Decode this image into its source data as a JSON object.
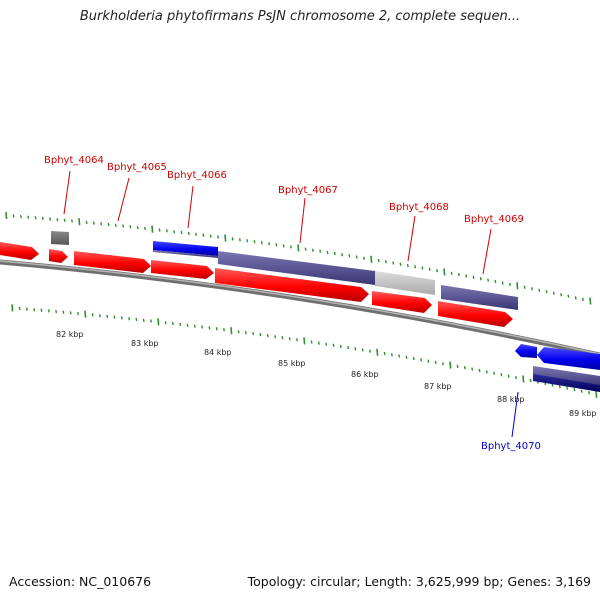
{
  "title": "Burkholderia phytofirmans PsJN chromosome 2, complete sequen...",
  "footer": {
    "accession": "Accession: NC_010676",
    "info": "Topology: circular; Length: 3,625,999 bp; Genes: 3,169"
  },
  "colors": {
    "forward_cds": "#ff0000",
    "reverse_cds": "#0000ee",
    "hit_purple": "#54508f",
    "hit_gray": "#c0c0c0",
    "backbone": "#808080",
    "tick_green": "#2f8f2f",
    "label_red": "#cc0000",
    "label_blue": "#0000cc"
  },
  "scale": {
    "ticks": [
      {
        "label": "82 kbp"
      },
      {
        "label": "83 kbp"
      },
      {
        "label": "84 kbp"
      },
      {
        "label": "85 kbp"
      },
      {
        "label": "86 kbp"
      },
      {
        "label": "87 kbp"
      },
      {
        "label": "88 kbp"
      },
      {
        "label": "89 kbp"
      }
    ]
  },
  "gene_labels": [
    {
      "text": "Bphyt_4064",
      "strand": "forward"
    },
    {
      "text": "Bphyt_4065",
      "strand": "forward"
    },
    {
      "text": "Bphyt_4066",
      "strand": "forward"
    },
    {
      "text": "Bphyt_4067",
      "strand": "forward"
    },
    {
      "text": "Bphyt_4068",
      "strand": "forward"
    },
    {
      "text": "Bphyt_4069",
      "strand": "forward"
    },
    {
      "text": "Bphyt_4070",
      "strand": "reverse"
    }
  ]
}
